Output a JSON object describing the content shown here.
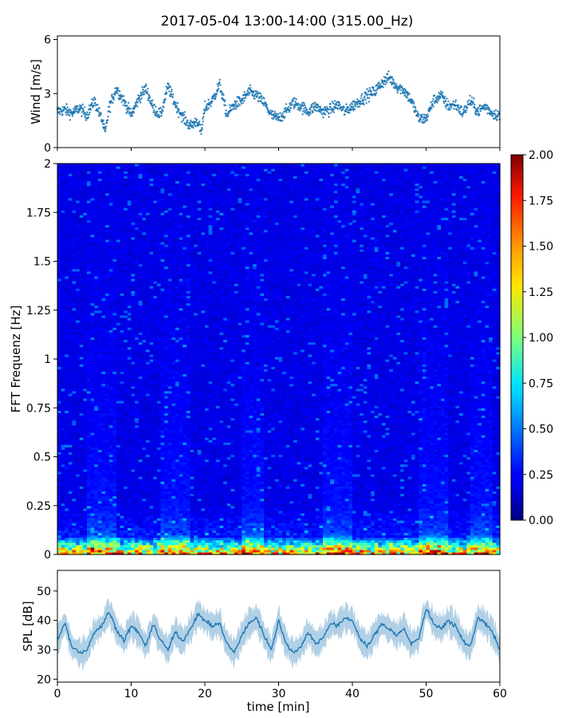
{
  "title": "2017-05-04 13:00-14:00 (315.00_Hz)",
  "colors": {
    "wind_marker": "#1f77b4",
    "spl_line": "#1f77b4",
    "axes": "#000000"
  },
  "chart_data": [
    {
      "id": "wind",
      "type": "scatter",
      "ylabel": "Wind [m/s]",
      "xlim": [
        0,
        60
      ],
      "ylim": [
        0,
        6.2
      ],
      "yticks": [
        "0",
        "3",
        "6"
      ],
      "grid": false,
      "series": [
        {
          "x_minutes": [
            0,
            1,
            2,
            3,
            4,
            5,
            6,
            6.5,
            7,
            8,
            9,
            10,
            11,
            12,
            13,
            14,
            15,
            16,
            17,
            18,
            19,
            19.5,
            20,
            21,
            22,
            23,
            24,
            25,
            26,
            27,
            28,
            29,
            30,
            31,
            32,
            33,
            34,
            35,
            36,
            37,
            38,
            39,
            40,
            41,
            42,
            43,
            44,
            45,
            46,
            47,
            48,
            49,
            50,
            51,
            52,
            53,
            54,
            55,
            56,
            57,
            58,
            59,
            60
          ],
          "y_ms": [
            2.0,
            2.1,
            1.9,
            2.2,
            1.8,
            2.6,
            1.6,
            0.8,
            2.2,
            3.3,
            2.6,
            1.8,
            2.7,
            3.3,
            2.2,
            1.8,
            3.4,
            2.4,
            1.7,
            1.2,
            1.5,
            0.8,
            2.2,
            2.6,
            3.5,
            1.8,
            2.4,
            2.6,
            3.1,
            2.9,
            2.5,
            1.8,
            1.6,
            2.0,
            2.5,
            2.3,
            2.0,
            2.3,
            2.0,
            2.1,
            2.4,
            2.0,
            2.3,
            2.6,
            2.9,
            3.1,
            3.6,
            3.9,
            3.4,
            3.2,
            2.6,
            1.6,
            1.6,
            2.6,
            2.9,
            2.3,
            2.4,
            1.9,
            2.6,
            2.0,
            2.3,
            1.9,
            1.8
          ]
        }
      ]
    },
    {
      "id": "spectrogram",
      "type": "heatmap",
      "ylabel": "FFT Frequenz [Hz]",
      "xlim": [
        0,
        60
      ],
      "ylim": [
        0,
        2
      ],
      "yticks": [
        "0",
        "0.25",
        "0.5",
        "0.75",
        "1",
        "1.25",
        "1.5",
        "1.75",
        "2"
      ],
      "grid": false,
      "colormap": "jet",
      "colorbar": {
        "range": [
          0,
          2
        ],
        "ticks": [
          "0.00",
          "0.25",
          "0.50",
          "0.75",
          "1.00",
          "1.25",
          "1.50",
          "1.75",
          "2.00"
        ]
      },
      "features": {
        "background_level": 0.2,
        "low_freq_band_max_hz": 0.1,
        "low_freq_peak_level": 2.0,
        "brighter_time_ranges_min": [
          [
            4,
            8
          ],
          [
            14,
            18
          ],
          [
            25,
            28
          ],
          [
            36,
            40
          ],
          [
            49,
            53
          ],
          [
            56,
            59
          ]
        ]
      }
    },
    {
      "id": "spl",
      "type": "line",
      "ylabel": "SPL [dB]",
      "xlabel": "time [min]",
      "xlim": [
        0,
        60
      ],
      "ylim": [
        19,
        57
      ],
      "yticks": [
        "20",
        "30",
        "40",
        "50"
      ],
      "xticks": [
        "0",
        "10",
        "20",
        "30",
        "40",
        "50",
        "60"
      ],
      "grid": false,
      "series": [
        {
          "x_minutes": [
            0,
            1,
            2,
            3,
            4,
            5,
            6,
            7,
            8,
            9,
            10,
            11,
            12,
            13,
            14,
            15,
            16,
            17,
            18,
            19,
            20,
            21,
            22,
            23,
            24,
            25,
            26,
            27,
            28,
            29,
            30,
            31,
            32,
            33,
            34,
            35,
            36,
            37,
            38,
            39,
            40,
            41,
            42,
            43,
            44,
            45,
            46,
            47,
            48,
            49,
            50,
            51,
            52,
            53,
            54,
            55,
            56,
            57,
            58,
            59,
            60
          ],
          "y_db": [
            33,
            39,
            31,
            29,
            30,
            36,
            38,
            43,
            37,
            33,
            38,
            36,
            31,
            39,
            33,
            30,
            36,
            33,
            37,
            42,
            40,
            38,
            39,
            32,
            29,
            35,
            39,
            41,
            35,
            30,
            40,
            32,
            29,
            31,
            36,
            32,
            34,
            39,
            38,
            41,
            40,
            34,
            31,
            35,
            39,
            37,
            35,
            37,
            32,
            34,
            44,
            39,
            37,
            40,
            38,
            33,
            31,
            41,
            39,
            36,
            30
          ]
        }
      ]
    }
  ]
}
